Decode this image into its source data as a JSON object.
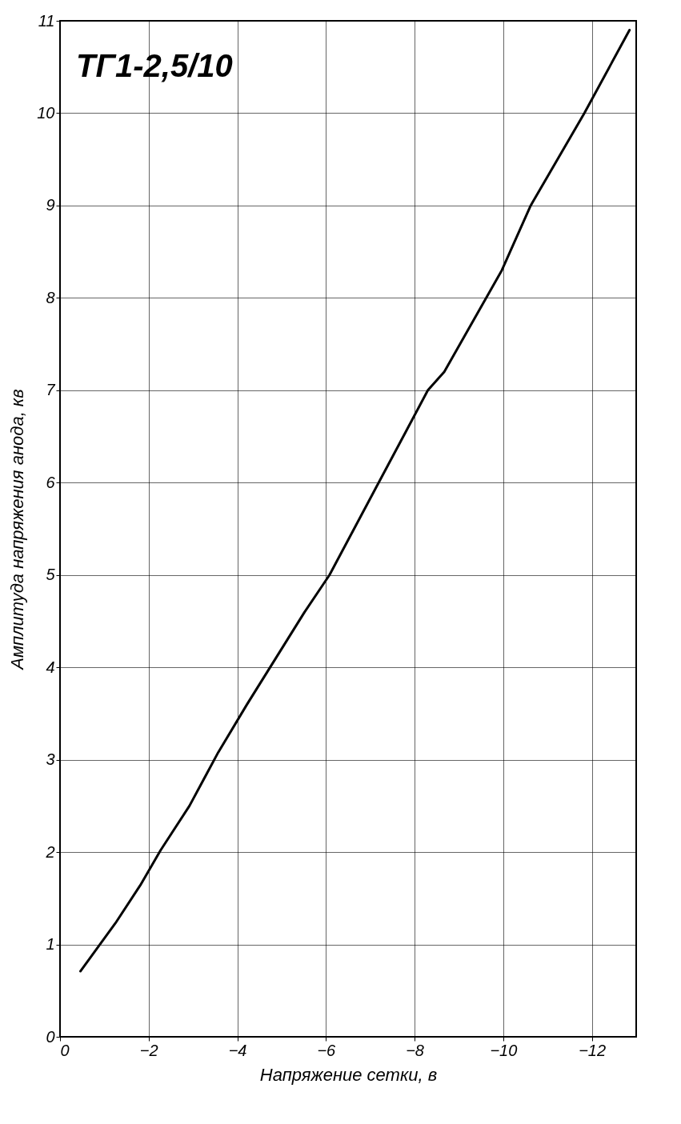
{
  "chart_data": {
    "type": "line",
    "xlabel": "Напряжение сетки, в",
    "ylabel": "Амплитуда напряжения анода, кв",
    "annotations": [
      "ТГ1-2,5/10"
    ],
    "x": [
      -0.46,
      -1.25,
      -1.81,
      -2.27,
      -2.92,
      -3.57,
      -4.22,
      -5.52,
      -6.08,
      -7.19,
      -8.3,
      -8.67,
      -9.97,
      -10.62,
      -11.83,
      -12.85
    ],
    "series": [
      {
        "color": "#000000",
        "values": [
          0.71,
          1.23,
          1.64,
          2.02,
          2.5,
          3.08,
          3.6,
          4.6,
          5,
          6,
          7,
          7.2,
          8.3,
          9,
          10,
          10.9
        ]
      }
    ],
    "xlim": [
      0,
      -13
    ],
    "xticks": [
      0,
      -2,
      -4,
      -6,
      -8,
      -10,
      -12
    ],
    "ylim": [
      0,
      11
    ],
    "yticks": [
      0,
      1,
      2,
      3,
      4,
      5,
      6,
      7,
      8,
      9,
      10,
      11
    ],
    "grid": true,
    "marker": "none",
    "line_style": "solid"
  }
}
